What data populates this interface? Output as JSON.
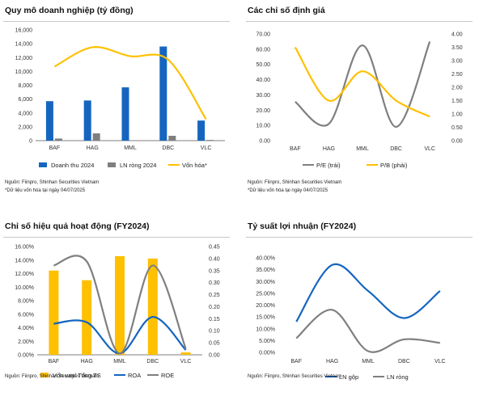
{
  "colors": {
    "blue": "#1565c0",
    "gray": "#7f7f7f",
    "gold": "#ffc000",
    "grid": "#dcdcdc",
    "axis": "#555555"
  },
  "panels": [
    {
      "id": "p1",
      "title": "Quy mô doanh nghiệp (tỷ đồng)",
      "notes": [
        "Nguồn: Fiinpro, Shinhan Securities Vietnam",
        "*Dữ liệu vốn hóa tại ngày 04/07/2025"
      ]
    },
    {
      "id": "p2",
      "title": "Các chỉ số định giá",
      "notes": [
        "Nguồn: Fiinpro, Shinhan Securities Vietnam",
        "*Dữ liệu vốn hóa tại ngày 04/07/2025"
      ]
    },
    {
      "id": "p3",
      "title": "Chỉ số hiệu quả hoạt động (FY2024)",
      "notes": [
        "Nguồn: Fiinpro, Shinhan Securities Vietnam"
      ]
    },
    {
      "id": "p4",
      "title": "Tỷ suất lợi nhuận (FY2024)",
      "notes": [
        "Nguồn: Fiinpro, Shinhan Securities Vietnam"
      ]
    }
  ],
  "chart_data": [
    {
      "type": "bar",
      "title": "Quy mô doanh nghiệp (tỷ đồng)",
      "categories": [
        "BAF",
        "HAG",
        "MML",
        "DBC",
        "VLC"
      ],
      "ylim": [
        0,
        16000
      ],
      "yticks": [
        "0",
        "2,000",
        "4,000",
        "6,000",
        "8,000",
        "10,000",
        "12,000",
        "14,000",
        "16,000"
      ],
      "grid": false,
      "legend": "bottom",
      "series": [
        {
          "name": "Doanh thu 2024",
          "kind": "bar",
          "color": "#1565c0",
          "values": [
            5700,
            5800,
            7700,
            13600,
            2900
          ]
        },
        {
          "name": "LN ròng 2024",
          "kind": "bar",
          "color": "#7f7f7f",
          "values": [
            300,
            1050,
            0,
            700,
            100
          ]
        },
        {
          "name": "Vốn hóa*",
          "kind": "line",
          "color": "#ffc000",
          "values": [
            10700,
            13500,
            12200,
            11700,
            3100
          ]
        }
      ]
    },
    {
      "type": "line",
      "title": "Các chỉ số định giá",
      "categories": [
        "BAF",
        "HAG",
        "MML",
        "DBC",
        "VLC"
      ],
      "ylim": [
        0,
        70
      ],
      "yticks": [
        "0.00",
        "10.00",
        "20.00",
        "30.00",
        "40.00",
        "50.00",
        "60.00",
        "70.00"
      ],
      "y2lim": [
        0,
        4
      ],
      "y2ticks": [
        "0.00",
        "0.50",
        "1.00",
        "1.50",
        "2.00",
        "2.50",
        "3.00",
        "3.50",
        "4.00"
      ],
      "grid": false,
      "legend": "bottom",
      "series": [
        {
          "name": "P/E (trái)",
          "axis": "left",
          "color": "#7f7f7f",
          "values": [
            25.5,
            11.0,
            62.5,
            9.0,
            65.0
          ]
        },
        {
          "name": "P/B (phải)",
          "axis": "right",
          "color": "#ffc000",
          "values": [
            3.5,
            1.5,
            2.6,
            1.5,
            0.9
          ]
        }
      ]
    },
    {
      "type": "bar",
      "title": "Chỉ số hiệu quả hoạt động (FY2024)",
      "categories": [
        "BAF",
        "HAG",
        "MML",
        "DBC",
        "VLC"
      ],
      "ylim": [
        0,
        0.16
      ],
      "yticks": [
        "0.00%",
        "2.00%",
        "4.00%",
        "6.00%",
        "8.00%",
        "10.00%",
        "12.00%",
        "14.00%",
        "16.00%"
      ],
      "y2lim": [
        0,
        0.45
      ],
      "y2ticks": [
        "0.00",
        "0.05",
        "0.10",
        "0.15",
        "0.20",
        "0.25",
        "0.30",
        "0.35",
        "0.40",
        "0.45"
      ],
      "grid": false,
      "legend": "bottom",
      "series": [
        {
          "name": "Vốn vay/ Tổng TS",
          "kind": "bar",
          "axis": "right",
          "color": "#ffc000",
          "values": [
            0.35,
            0.31,
            0.41,
            0.4,
            0.01
          ]
        },
        {
          "name": "ROA",
          "kind": "line",
          "axis": "left",
          "color": "#1565c0",
          "values": [
            0.046,
            0.048,
            0.002,
            0.056,
            0.007
          ]
        },
        {
          "name": "ROE",
          "kind": "line",
          "axis": "left",
          "color": "#7f7f7f",
          "values": [
            0.132,
            0.138,
            0.002,
            0.132,
            0.009
          ]
        }
      ]
    },
    {
      "type": "line",
      "title": "Tỷ suất lợi nhuận (FY2024)",
      "categories": [
        "BAF",
        "HAG",
        "MML",
        "DBC",
        "VLC"
      ],
      "ylim": [
        0,
        0.4
      ],
      "yticks": [
        "0.00%",
        "5.00%",
        "10.00%",
        "15.00%",
        "20.00%",
        "25.00%",
        "30.00%",
        "35.00%",
        "40.00%"
      ],
      "grid": false,
      "legend": "bottom",
      "series": [
        {
          "name": "LN gộp",
          "color": "#1565c0",
          "values": [
            0.13,
            0.37,
            0.26,
            0.145,
            0.26
          ]
        },
        {
          "name": "LN ròng",
          "color": "#7f7f7f",
          "values": [
            0.06,
            0.18,
            0.005,
            0.055,
            0.04
          ]
        }
      ]
    }
  ]
}
